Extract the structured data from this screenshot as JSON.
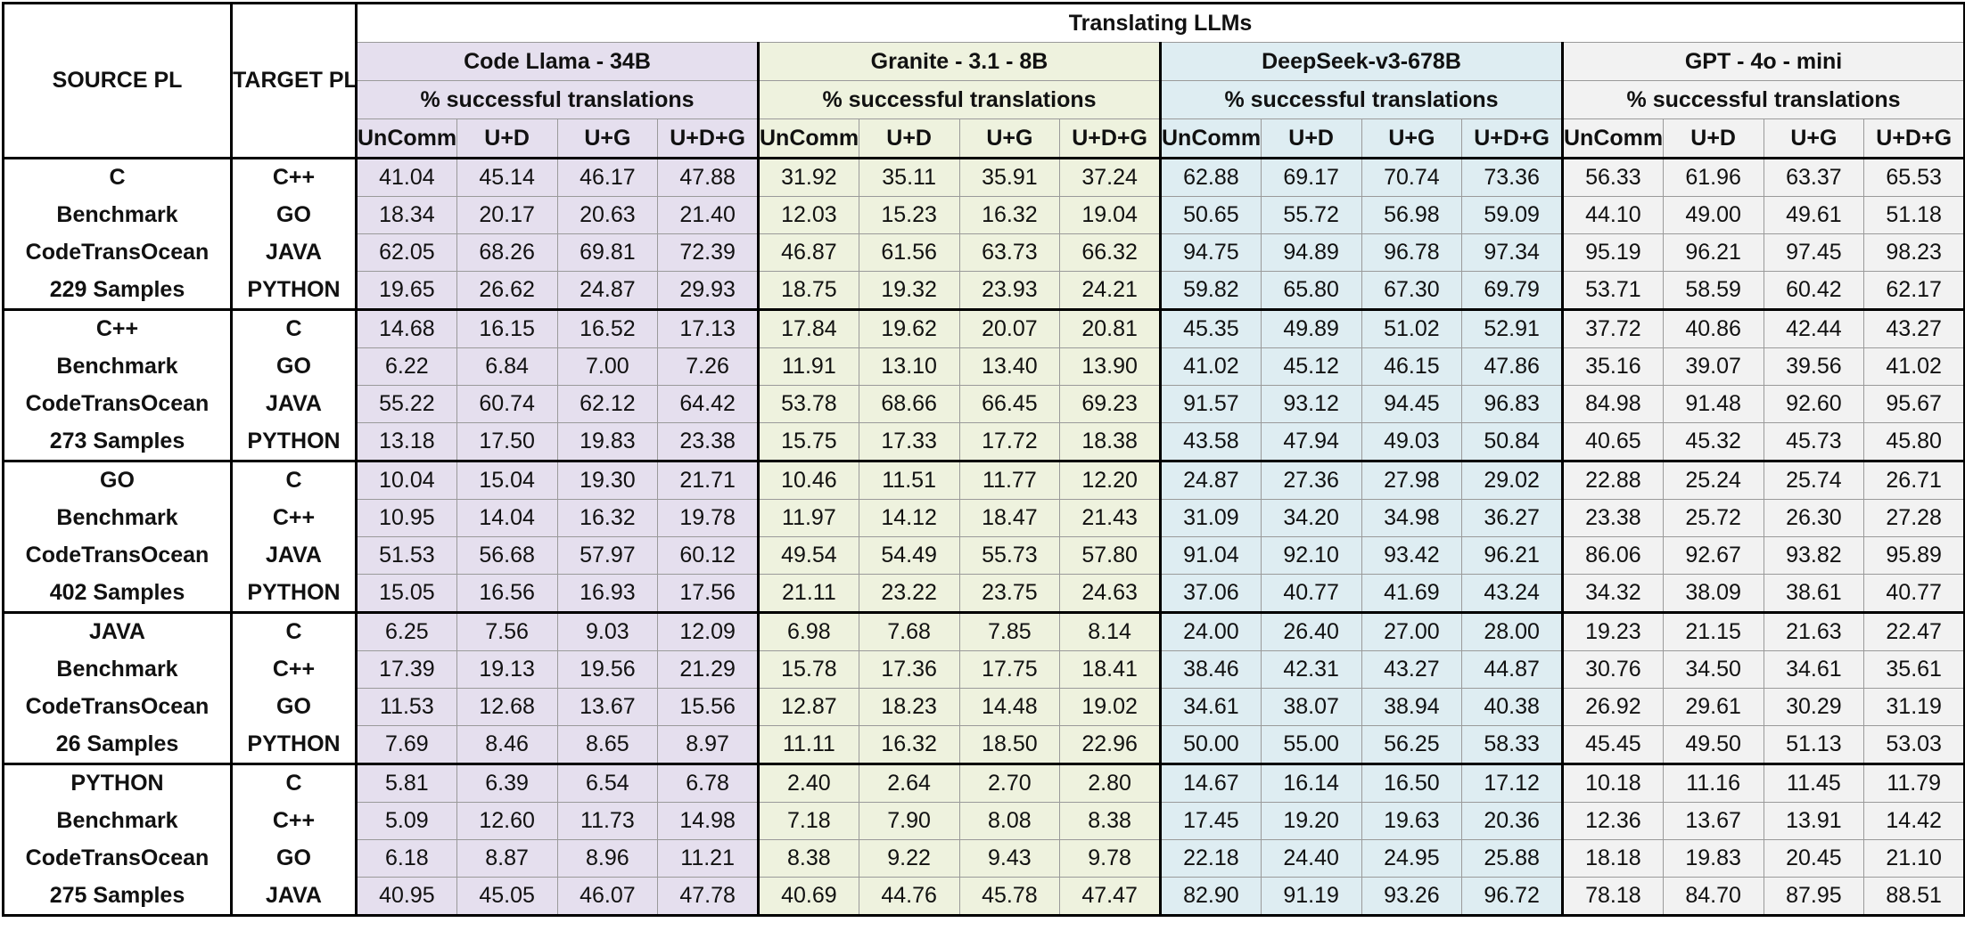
{
  "header": {
    "title": "Translating LLMs",
    "source_label": "SOURCE PL",
    "target_label": "TARGET PL",
    "models": [
      {
        "name": "Code Llama - 34B",
        "metric": "% successful translations",
        "columns": [
          "UnComm",
          "U+D",
          "U+G",
          "U+D+G"
        ]
      },
      {
        "name": "Granite - 3.1 - 8B",
        "metric": "% successful translations",
        "columns": [
          "UnComm",
          "U+D",
          "U+G",
          "U+D+G"
        ]
      },
      {
        "name": "DeepSeek-v3-678B",
        "metric": "% successful translations",
        "columns": [
          "UnComm",
          "U+D",
          "U+G",
          "U+D+G"
        ]
      },
      {
        "name": "GPT - 4o - mini",
        "metric": "% successful translations",
        "columns": [
          "UnComm",
          "U+D",
          "U+G",
          "U+D+G"
        ]
      }
    ]
  },
  "groups": [
    {
      "source": [
        "C",
        "Benchmark",
        "CodeTransOcean",
        "229 Samples"
      ],
      "rows": [
        {
          "target": "C++",
          "values": [
            "41.04",
            "45.14",
            "46.17",
            "47.88",
            "31.92",
            "35.11",
            "35.91",
            "37.24",
            "62.88",
            "69.17",
            "70.74",
            "73.36",
            "56.33",
            "61.96",
            "63.37",
            "65.53"
          ]
        },
        {
          "target": "GO",
          "values": [
            "18.34",
            "20.17",
            "20.63",
            "21.40",
            "12.03",
            "15.23",
            "16.32",
            "19.04",
            "50.65",
            "55.72",
            "56.98",
            "59.09",
            "44.10",
            "49.00",
            "49.61",
            "51.18"
          ]
        },
        {
          "target": "JAVA",
          "values": [
            "62.05",
            "68.26",
            "69.81",
            "72.39",
            "46.87",
            "61.56",
            "63.73",
            "66.32",
            "94.75",
            "94.89",
            "96.78",
            "97.34",
            "95.19",
            "96.21",
            "97.45",
            "98.23"
          ]
        },
        {
          "target": "PYTHON",
          "values": [
            "19.65",
            "26.62",
            "24.87",
            "29.93",
            "18.75",
            "19.32",
            "23.93",
            "24.21",
            "59.82",
            "65.80",
            "67.30",
            "69.79",
            "53.71",
            "58.59",
            "60.42",
            "62.17"
          ]
        }
      ]
    },
    {
      "source": [
        "C++",
        "Benchmark",
        "CodeTransOcean",
        "273 Samples"
      ],
      "rows": [
        {
          "target": "C",
          "values": [
            "14.68",
            "16.15",
            "16.52",
            "17.13",
            "17.84",
            "19.62",
            "20.07",
            "20.81",
            "45.35",
            "49.89",
            "51.02",
            "52.91",
            "37.72",
            "40.86",
            "42.44",
            "43.27"
          ]
        },
        {
          "target": "GO",
          "values": [
            "6.22",
            "6.84",
            "7.00",
            "7.26",
            "11.91",
            "13.10",
            "13.40",
            "13.90",
            "41.02",
            "45.12",
            "46.15",
            "47.86",
            "35.16",
            "39.07",
            "39.56",
            "41.02"
          ]
        },
        {
          "target": "JAVA",
          "values": [
            "55.22",
            "60.74",
            "62.12",
            "64.42",
            "53.78",
            "68.66",
            "66.45",
            "69.23",
            "91.57",
            "93.12",
            "94.45",
            "96.83",
            "84.98",
            "91.48",
            "92.60",
            "95.67"
          ]
        },
        {
          "target": "PYTHON",
          "values": [
            "13.18",
            "17.50",
            "19.83",
            "23.38",
            "15.75",
            "17.33",
            "17.72",
            "18.38",
            "43.58",
            "47.94",
            "49.03",
            "50.84",
            "40.65",
            "45.32",
            "45.73",
            "45.80"
          ]
        }
      ]
    },
    {
      "source": [
        "GO",
        "Benchmark",
        "CodeTransOcean",
        "402 Samples"
      ],
      "rows": [
        {
          "target": "C",
          "values": [
            "10.04",
            "15.04",
            "19.30",
            "21.71",
            "10.46",
            "11.51",
            "11.77",
            "12.20",
            "24.87",
            "27.36",
            "27.98",
            "29.02",
            "22.88",
            "25.24",
            "25.74",
            "26.71"
          ]
        },
        {
          "target": "C++",
          "values": [
            "10.95",
            "14.04",
            "16.32",
            "19.78",
            "11.97",
            "14.12",
            "18.47",
            "21.43",
            "31.09",
            "34.20",
            "34.98",
            "36.27",
            "23.38",
            "25.72",
            "26.30",
            "27.28"
          ]
        },
        {
          "target": "JAVA",
          "values": [
            "51.53",
            "56.68",
            "57.97",
            "60.12",
            "49.54",
            "54.49",
            "55.73",
            "57.80",
            "91.04",
            "92.10",
            "93.42",
            "96.21",
            "86.06",
            "92.67",
            "93.82",
            "95.89"
          ]
        },
        {
          "target": "PYTHON",
          "values": [
            "15.05",
            "16.56",
            "16.93",
            "17.56",
            "21.11",
            "23.22",
            "23.75",
            "24.63",
            "37.06",
            "40.77",
            "41.69",
            "43.24",
            "34.32",
            "38.09",
            "38.61",
            "40.77"
          ]
        }
      ]
    },
    {
      "source": [
        "JAVA",
        "Benchmark",
        "CodeTransOcean",
        "26 Samples"
      ],
      "rows": [
        {
          "target": "C",
          "values": [
            "6.25",
            "7.56",
            "9.03",
            "12.09",
            "6.98",
            "7.68",
            "7.85",
            "8.14",
            "24.00",
            "26.40",
            "27.00",
            "28.00",
            "19.23",
            "21.15",
            "21.63",
            "22.47"
          ]
        },
        {
          "target": "C++",
          "values": [
            "17.39",
            "19.13",
            "19.56",
            "21.29",
            "15.78",
            "17.36",
            "17.75",
            "18.41",
            "38.46",
            "42.31",
            "43.27",
            "44.87",
            "30.76",
            "34.50",
            "34.61",
            "35.61"
          ]
        },
        {
          "target": "GO",
          "values": [
            "11.53",
            "12.68",
            "13.67",
            "15.56",
            "12.87",
            "18.23",
            "14.48",
            "19.02",
            "34.61",
            "38.07",
            "38.94",
            "40.38",
            "26.92",
            "29.61",
            "30.29",
            "31.19"
          ]
        },
        {
          "target": "PYTHON",
          "values": [
            "7.69",
            "8.46",
            "8.65",
            "8.97",
            "11.11",
            "16.32",
            "18.50",
            "22.96",
            "50.00",
            "55.00",
            "56.25",
            "58.33",
            "45.45",
            "49.50",
            "51.13",
            "53.03"
          ]
        }
      ]
    },
    {
      "source": [
        "PYTHON",
        "Benchmark",
        "CodeTransOcean",
        "275 Samples"
      ],
      "rows": [
        {
          "target": "C",
          "values": [
            "5.81",
            "6.39",
            "6.54",
            "6.78",
            "2.40",
            "2.64",
            "2.70",
            "2.80",
            "14.67",
            "16.14",
            "16.50",
            "17.12",
            "10.18",
            "11.16",
            "11.45",
            "11.79"
          ]
        },
        {
          "target": "C++",
          "values": [
            "5.09",
            "12.60",
            "11.73",
            "14.98",
            "7.18",
            "7.90",
            "8.08",
            "8.38",
            "17.45",
            "19.20",
            "19.63",
            "20.36",
            "12.36",
            "13.67",
            "13.91",
            "14.42"
          ]
        },
        {
          "target": "GO",
          "values": [
            "6.18",
            "8.87",
            "8.96",
            "11.21",
            "8.38",
            "9.22",
            "9.43",
            "9.78",
            "22.18",
            "24.40",
            "24.95",
            "25.88",
            "18.18",
            "19.83",
            "20.45",
            "21.10"
          ]
        },
        {
          "target": "JAVA",
          "values": [
            "40.95",
            "45.05",
            "46.07",
            "47.78",
            "40.69",
            "44.76",
            "45.78",
            "47.47",
            "82.90",
            "91.19",
            "93.26",
            "96.72",
            "78.18",
            "84.70",
            "87.95",
            "88.51"
          ]
        }
      ]
    }
  ]
}
